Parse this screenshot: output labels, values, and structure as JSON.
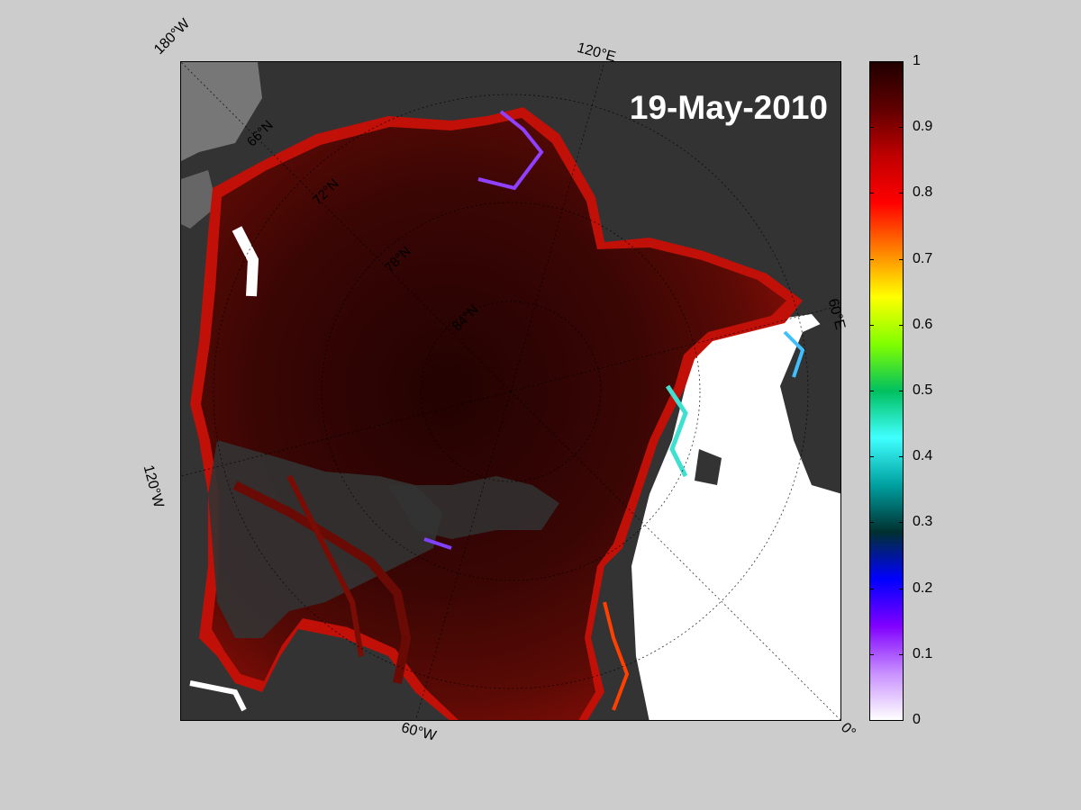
{
  "map": {
    "date": "19-May-2010",
    "longitude_labels": [
      "180°W",
      "120°E",
      "60°E",
      "0°",
      "60°W",
      "120°W"
    ],
    "latitude_labels": [
      "66°N",
      "72°N",
      "78°N",
      "84°N"
    ],
    "colors": {
      "land": "#333333",
      "land_edge": "#777777",
      "open_water": "#ffffff",
      "ice_core": "#2a0303",
      "ice_mid": "#5a0a05",
      "ice_edge": "#b01008",
      "background": "#cccccc"
    }
  },
  "colorbar": {
    "min": 0,
    "max": 1,
    "tick_labels": [
      "1",
      "0.9",
      "0.8",
      "0.7",
      "0.6",
      "0.5",
      "0.4",
      "0.3",
      "0.2",
      "0.1",
      "0"
    ],
    "colors": [
      "#ffffff",
      "#c890ff",
      "#8000ff",
      "#0000ff",
      "#003030",
      "#00a0a0",
      "#40ffff",
      "#00c060",
      "#80ff00",
      "#ffff00",
      "#ff8000",
      "#ff0000",
      "#c00000",
      "#600000",
      "#200000"
    ]
  }
}
